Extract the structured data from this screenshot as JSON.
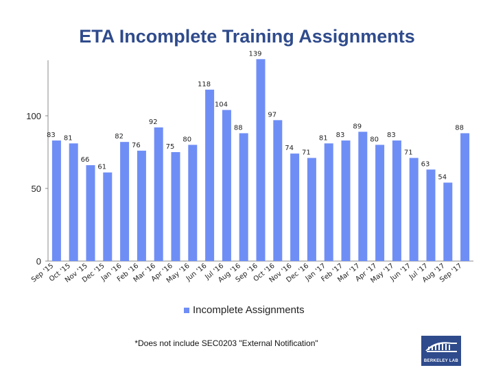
{
  "chart_data": {
    "type": "bar",
    "title": "ETA Incomplete Training Assignments",
    "categories": [
      "Sep '15",
      "Oct '15",
      "Nov '15",
      "Dec '15",
      "Jan '16",
      "Feb '16",
      "Mar '16",
      "Apr '16",
      "May '16",
      "Jun '16",
      "Jul '16",
      "Aug '16",
      "Sep '16",
      "Oct '16",
      "Nov '16",
      "Dec '16",
      "Jan '17",
      "Feb '17",
      "Mar '17",
      "Apr '17",
      "May '17",
      "Jun '17",
      "Jul '17",
      "Aug '17",
      "Sep '17"
    ],
    "series": [
      {
        "name": "Incomplete Assignments",
        "values": [
          83,
          81,
          66,
          61,
          82,
          76,
          92,
          75,
          80,
          118,
          104,
          88,
          139,
          97,
          74,
          71,
          81,
          83,
          89,
          80,
          83,
          71,
          63,
          54,
          88
        ]
      }
    ],
    "yticks": [
      0,
      50,
      100
    ],
    "ylim": [
      0,
      139
    ],
    "color": "#6f8ef5",
    "legend": "bottom-center",
    "grid": false
  },
  "legend_label": "Incomplete Assignments",
  "footnote": "*Does not include SEC0203 \"External Notification\"",
  "logo_text": "BERKELEY LAB"
}
